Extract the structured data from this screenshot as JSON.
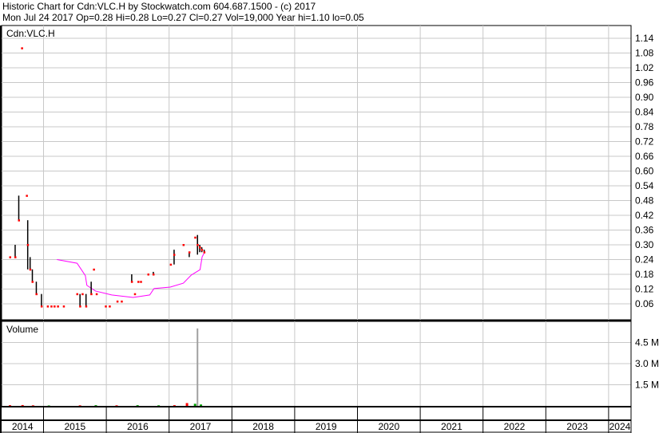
{
  "header": {
    "line1": "Historic Chart for Cdn:VLC.H by Stockwatch.com 604.687.1500 - (c) 2017",
    "line2": "Mon Jul 24 2017  Op=0.28  Hi=0.28  Lo=0.27  Cl=0.27  Vol=19,000  Year hi=1.10  lo=0.05"
  },
  "chart_data": [
    {
      "type": "ohlc",
      "title": "Cdn:VLC.H",
      "ylim": [
        0.0,
        1.17
      ],
      "yticks": [
        "1.14",
        "1.08",
        "1.02",
        "0.96",
        "0.90",
        "0.84",
        "0.78",
        "0.72",
        "0.66",
        "0.60",
        "0.54",
        "0.48",
        "0.42",
        "0.36",
        "0.30",
        "0.24",
        "0.18",
        "0.12",
        "0.06"
      ],
      "xlim": [
        "2014-01-01",
        "2024-04-30"
      ],
      "xticks": [
        "2014",
        "2015",
        "2016",
        "2017",
        "2018",
        "2019",
        "2020",
        "2021",
        "2022",
        "2023",
        "2024"
      ],
      "grid": true,
      "colors": {
        "bar": "#000000",
        "close": "#ff0000",
        "average": "#ff00ff",
        "grid": "#c8c8c8"
      },
      "bars": [
        {
          "date": "2014-06-20",
          "high": 0.25,
          "low": 0.25,
          "close": 0.25
        },
        {
          "date": "2014-07-20",
          "high": 0.3,
          "low": 0.25,
          "close": 0.25
        },
        {
          "date": "2014-08-10",
          "high": 0.5,
          "low": 0.4,
          "close": 0.4
        },
        {
          "date": "2014-08-28",
          "high": 1.1,
          "low": 1.1,
          "close": 1.1
        },
        {
          "date": "2014-09-25",
          "high": 0.5,
          "low": 0.5,
          "close": 0.5
        },
        {
          "date": "2014-10-01",
          "high": 0.4,
          "low": 0.2,
          "close": 0.3
        },
        {
          "date": "2014-10-15",
          "high": 0.25,
          "low": 0.2,
          "close": 0.2
        },
        {
          "date": "2014-10-28",
          "high": 0.2,
          "low": 0.15,
          "close": 0.15
        },
        {
          "date": "2014-11-20",
          "high": 0.15,
          "low": 0.1,
          "close": 0.1
        },
        {
          "date": "2014-12-20",
          "high": 0.1,
          "low": 0.05,
          "close": 0.05
        },
        {
          "date": "2015-01-25",
          "high": 0.05,
          "low": 0.05,
          "close": 0.05
        },
        {
          "date": "2015-02-15",
          "high": 0.05,
          "low": 0.05,
          "close": 0.05
        },
        {
          "date": "2015-03-05",
          "high": 0.05,
          "low": 0.05,
          "close": 0.05
        },
        {
          "date": "2015-03-25",
          "high": 0.05,
          "low": 0.05,
          "close": 0.05
        },
        {
          "date": "2015-04-28",
          "high": 0.05,
          "low": 0.05,
          "close": 0.05
        },
        {
          "date": "2015-07-15",
          "high": 0.1,
          "low": 0.1,
          "close": 0.1
        },
        {
          "date": "2015-08-01",
          "high": 0.1,
          "low": 0.05,
          "close": 0.05
        },
        {
          "date": "2015-08-15",
          "high": 0.1,
          "low": 0.1,
          "close": 0.1
        },
        {
          "date": "2015-09-05",
          "high": 0.1,
          "low": 0.05,
          "close": 0.05
        },
        {
          "date": "2015-10-05",
          "high": 0.15,
          "low": 0.1,
          "close": 0.1
        },
        {
          "date": "2015-10-20",
          "high": 0.2,
          "low": 0.2,
          "close": 0.2
        },
        {
          "date": "2015-11-05",
          "high": 0.1,
          "low": 0.1,
          "close": 0.1
        },
        {
          "date": "2015-12-28",
          "high": 0.05,
          "low": 0.05,
          "close": 0.05
        },
        {
          "date": "2016-01-20",
          "high": 0.05,
          "low": 0.05,
          "close": 0.05
        },
        {
          "date": "2016-03-05",
          "high": 0.07,
          "low": 0.07,
          "close": 0.07
        },
        {
          "date": "2016-03-30",
          "high": 0.07,
          "low": 0.07,
          "close": 0.07
        },
        {
          "date": "2016-05-28",
          "high": 0.18,
          "low": 0.15,
          "close": 0.15
        },
        {
          "date": "2016-06-15",
          "high": 0.1,
          "low": 0.1,
          "close": 0.1
        },
        {
          "date": "2016-07-05",
          "high": 0.15,
          "low": 0.15,
          "close": 0.15
        },
        {
          "date": "2016-07-20",
          "high": 0.15,
          "low": 0.15,
          "close": 0.15
        },
        {
          "date": "2016-09-01",
          "high": 0.18,
          "low": 0.18,
          "close": 0.18
        },
        {
          "date": "2016-10-01",
          "high": 0.19,
          "low": 0.18,
          "close": 0.18
        },
        {
          "date": "2017-01-10",
          "high": 0.22,
          "low": 0.22,
          "close": 0.22
        },
        {
          "date": "2017-01-30",
          "high": 0.28,
          "low": 0.22,
          "close": 0.26
        },
        {
          "date": "2017-03-25",
          "high": 0.3,
          "low": 0.3,
          "close": 0.3
        },
        {
          "date": "2017-04-28",
          "high": 0.27,
          "low": 0.25,
          "close": 0.27
        },
        {
          "date": "2017-06-01",
          "high": 0.33,
          "low": 0.33,
          "close": 0.33
        },
        {
          "date": "2017-06-15",
          "high": 0.34,
          "low": 0.26,
          "close": 0.3
        },
        {
          "date": "2017-06-28",
          "high": 0.3,
          "low": 0.27,
          "close": 0.29
        },
        {
          "date": "2017-07-10",
          "high": 0.29,
          "low": 0.27,
          "close": 0.28
        },
        {
          "date": "2017-07-24",
          "high": 0.28,
          "low": 0.27,
          "close": 0.27
        }
      ],
      "average": [
        {
          "date": "2015-03-20",
          "value": 0.24
        },
        {
          "date": "2015-07-15",
          "value": 0.225
        },
        {
          "date": "2015-09-01",
          "value": 0.175
        },
        {
          "date": "2015-09-10",
          "value": 0.135
        },
        {
          "date": "2015-10-30",
          "value": 0.112
        },
        {
          "date": "2016-02-01",
          "value": 0.096
        },
        {
          "date": "2016-06-05",
          "value": 0.086
        },
        {
          "date": "2016-09-10",
          "value": 0.096
        },
        {
          "date": "2016-10-05",
          "value": 0.122
        },
        {
          "date": "2017-01-08",
          "value": 0.128
        },
        {
          "date": "2017-03-25",
          "value": 0.144
        },
        {
          "date": "2017-05-10",
          "value": 0.177
        },
        {
          "date": "2017-06-30",
          "value": 0.199
        },
        {
          "date": "2017-07-12",
          "value": 0.251
        },
        {
          "date": "2017-07-24",
          "value": 0.267
        }
      ]
    },
    {
      "type": "bar",
      "title": "Volume",
      "ylim": [
        0,
        6.3
      ],
      "yticks": [
        "4.5 M",
        "3.0 M",
        "1.5 M"
      ],
      "yunit": "M",
      "colors": {
        "up": "#00a000",
        "down": "#ff0000",
        "spike": "#a0a0a0"
      },
      "bars": [
        {
          "date": "2014-06-20",
          "value": 0.05,
          "dir": "down"
        },
        {
          "date": "2014-09-01",
          "value": 0.06,
          "dir": "down"
        },
        {
          "date": "2014-11-01",
          "value": 0.04,
          "dir": "down"
        },
        {
          "date": "2015-02-01",
          "value": 0.03,
          "dir": "up"
        },
        {
          "date": "2015-08-01",
          "value": 0.04,
          "dir": "down"
        },
        {
          "date": "2015-11-01",
          "value": 0.05,
          "dir": "up"
        },
        {
          "date": "2016-03-01",
          "value": 0.04,
          "dir": "down"
        },
        {
          "date": "2016-07-01",
          "value": 0.05,
          "dir": "up"
        },
        {
          "date": "2016-11-01",
          "value": 0.04,
          "dir": "up"
        },
        {
          "date": "2017-02-01",
          "value": 0.05,
          "dir": "down"
        },
        {
          "date": "2017-04-15",
          "value": 0.2,
          "dir": "down"
        },
        {
          "date": "2017-06-01",
          "value": 0.15,
          "dir": "up"
        },
        {
          "date": "2017-06-15",
          "value": 5.5,
          "dir": "spike"
        },
        {
          "date": "2017-07-05",
          "value": 0.1,
          "dir": "up"
        }
      ]
    }
  ]
}
